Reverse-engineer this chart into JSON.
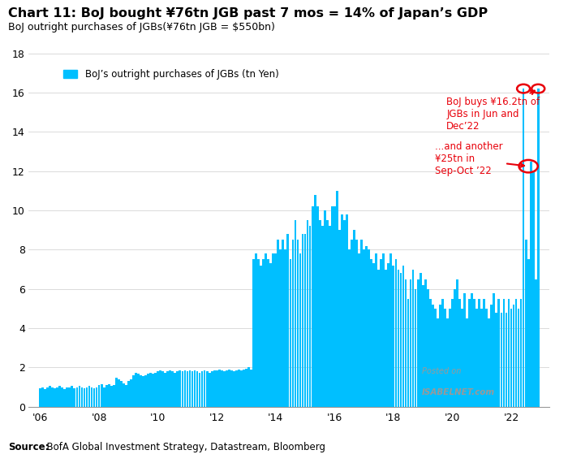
{
  "title": "Chart 11: BoJ bought ¥76tn JGB past 7 mos = 14% of Japan’s GDP",
  "subtitle": "BoJ outright purchases of JGBs(¥76tn JGB = $550bn)",
  "source_bold": "Source:",
  "source_rest": "  BofA Global Investment Strategy, Datastream, Bloomberg",
  "legend_label": "BoJ’s outright purchases of JGBs (tn Yen)",
  "bar_color": "#00BFFF",
  "annotation1_text": "BoJ buys ¥16.2tn of\nJGBs in Jun and\nDec’22",
  "annotation2_text": "...and another\n¥25tn in\nSep-Oct ’22",
  "annotation_color": "#e8000a",
  "ylim": [
    0,
    18
  ],
  "yticks": [
    0,
    2,
    4,
    6,
    8,
    10,
    12,
    14,
    16,
    18
  ],
  "xtick_positions": [
    2006,
    2008,
    2010,
    2012,
    2014,
    2016,
    2018,
    2020,
    2022
  ],
  "xtick_labels": [
    "'06",
    "'08",
    "'10",
    "'12",
    "'14",
    "'16",
    "'18",
    "'20",
    "'22"
  ],
  "background_color": "#ffffff",
  "watermark_line1": "Posted on",
  "watermark_line2": "ISABELNET.com",
  "monthly_values": [
    0.95,
    1.0,
    0.9,
    1.0,
    1.05,
    1.0,
    0.95,
    1.0,
    1.05,
    1.0,
    0.9,
    1.0,
    1.0,
    1.05,
    0.95,
    1.0,
    1.05,
    1.0,
    0.95,
    1.0,
    1.05,
    1.0,
    0.95,
    1.0,
    1.1,
    1.15,
    1.0,
    1.1,
    1.15,
    1.05,
    1.1,
    1.5,
    1.4,
    1.3,
    1.2,
    1.1,
    1.3,
    1.4,
    1.6,
    1.75,
    1.7,
    1.6,
    1.55,
    1.6,
    1.7,
    1.75,
    1.7,
    1.75,
    1.8,
    1.85,
    1.8,
    1.75,
    1.8,
    1.85,
    1.8,
    1.75,
    1.8,
    1.85,
    1.8,
    1.85,
    1.8,
    1.85,
    1.8,
    1.85,
    1.8,
    1.75,
    1.8,
    1.85,
    1.8,
    1.75,
    1.8,
    1.85,
    1.85,
    1.9,
    1.85,
    1.8,
    1.85,
    1.9,
    1.85,
    1.8,
    1.85,
    1.9,
    1.85,
    1.9,
    1.95,
    2.0,
    1.9,
    7.5,
    7.8,
    7.5,
    7.2,
    7.5,
    7.8,
    7.5,
    7.3,
    7.8,
    7.8,
    8.5,
    8.0,
    8.5,
    8.0,
    8.8,
    7.5,
    8.5,
    9.5,
    8.5,
    7.8,
    8.8,
    8.8,
    9.5,
    9.2,
    10.2,
    10.8,
    10.2,
    9.5,
    9.2,
    10.0,
    9.5,
    9.2,
    10.2,
    10.2,
    11.0,
    9.0,
    9.8,
    9.5,
    9.8,
    8.0,
    8.5,
    9.0,
    8.5,
    7.8,
    8.5,
    8.0,
    8.2,
    8.0,
    7.5,
    7.3,
    7.8,
    7.0,
    7.5,
    7.8,
    7.0,
    7.3,
    7.8,
    7.2,
    7.5,
    7.0,
    6.8,
    7.2,
    6.5,
    5.5,
    6.5,
    7.0,
    6.0,
    6.5,
    6.8,
    6.2,
    6.5,
    6.0,
    5.5,
    5.2,
    5.0,
    4.5,
    5.2,
    5.5,
    5.0,
    4.5,
    5.0,
    5.5,
    6.0,
    6.5,
    5.5,
    5.0,
    5.8,
    4.5,
    5.5,
    5.8,
    5.5,
    5.0,
    5.5,
    5.0,
    5.5,
    5.0,
    4.5,
    5.2,
    5.8,
    4.8,
    5.5,
    4.8,
    5.5,
    4.8,
    5.5,
    5.0,
    5.2,
    5.5,
    5.0,
    5.5,
    16.2,
    8.5,
    7.5,
    12.5,
    12.0,
    6.5,
    16.2
  ],
  "start_year": 2006
}
